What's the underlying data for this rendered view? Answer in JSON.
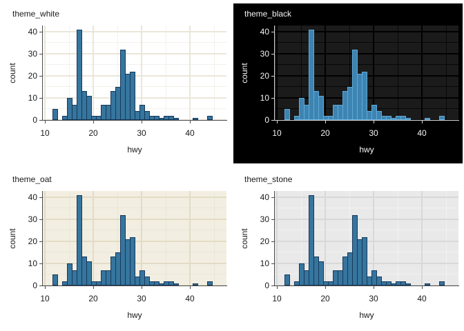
{
  "figure": {
    "description_visible_text_only": true,
    "background": "#ffffff"
  },
  "chart_data": {
    "type": "bar",
    "variant": "histogram",
    "title": "",
    "xlabel": "hwy",
    "ylabel": "count",
    "binwidth": 1,
    "x": [
      12,
      14,
      15,
      16,
      17,
      18,
      19,
      20,
      21,
      22,
      23,
      24,
      25,
      26,
      27,
      28,
      29,
      30,
      31,
      32,
      33,
      34,
      35,
      36,
      37,
      41,
      44
    ],
    "values": [
      5,
      2,
      10,
      7,
      41,
      13,
      11,
      2,
      2,
      7,
      7,
      13,
      15,
      32,
      21,
      22,
      4,
      7,
      4,
      2,
      2,
      1,
      2,
      2,
      1,
      1,
      2
    ],
    "xlim": [
      9.571,
      47.571
    ],
    "ylim": [
      0,
      42.8
    ],
    "x_major_ticks": [
      10,
      20,
      30,
      40
    ],
    "y_major_ticks": [
      0,
      10,
      20,
      30,
      40
    ],
    "x_minor_ticks": [
      15,
      25,
      35,
      45
    ],
    "y_minor_ticks": [
      5,
      15,
      25,
      35
    ],
    "grid": "major+minor",
    "legend": "none",
    "panels": [
      {
        "title": "theme_white",
        "outer_bg": "transparent",
        "panel_bg": "#ffffff",
        "grid_major": "#eae6d9",
        "grid_minor": "#f4f1ea",
        "grid_major_w": 1.5,
        "grid_minor_w": 1,
        "axis": "#4a4a4a",
        "text": "#1a1a1a",
        "bar_fill": "#36759e",
        "bar_stroke": "#16395b"
      },
      {
        "title": "theme_black",
        "outer_bg": "#000000",
        "panel_bg": "#1b1b1b",
        "grid_major": "#000000",
        "grid_minor": "#070707",
        "grid_major_w": 2,
        "grid_minor_w": 1,
        "axis": "#d9d9d9",
        "text": "#f5f5f5",
        "bar_fill": "#3d84b2",
        "bar_stroke": "#5fa9d6"
      },
      {
        "title": "theme_oat",
        "outer_bg": "transparent",
        "panel_bg": "#f2eee1",
        "grid_major": "#e2dcc6",
        "grid_minor": "#eae6d6",
        "grid_major_w": 1.5,
        "grid_minor_w": 1,
        "axis": "#4a4a4a",
        "text": "#1a1a1a",
        "bar_fill": "#36759e",
        "bar_stroke": "#16395b"
      },
      {
        "title": "theme_stone",
        "outer_bg": "transparent",
        "panel_bg": "#e9e9e9",
        "grid_major": "#d8d8d8",
        "grid_minor": "#f2f2f2",
        "grid_major_w": 1.5,
        "grid_minor_w": 1,
        "axis": "#4a4a4a",
        "text": "#1a1a1a",
        "bar_fill": "#36759e",
        "bar_stroke": "#16395b"
      }
    ]
  }
}
